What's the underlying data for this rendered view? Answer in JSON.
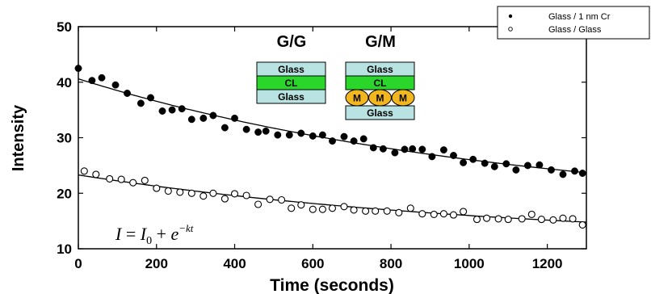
{
  "chart_data": {
    "type": "scatter",
    "xlabel": "Time (seconds)",
    "ylabel": "Intensity",
    "xlim": [
      0,
      1300
    ],
    "ylim": [
      10,
      50
    ],
    "xticks": [
      0,
      200,
      400,
      600,
      800,
      1000,
      1200
    ],
    "yticks": [
      10,
      20,
      30,
      40,
      50
    ],
    "grid": false,
    "legend_position": "top-right",
    "annotation": {
      "I": "I",
      "equals": " = ",
      "I0_base": "I",
      "I0_sub": "0",
      "plus": " + ",
      "e": "e",
      "exp": "−kt"
    },
    "series": [
      {
        "name": "Glass / 1 nm Cr",
        "marker": "filled-circle",
        "color": "#000000",
        "x": [
          0,
          35,
          60,
          95,
          125,
          160,
          185,
          215,
          240,
          265,
          290,
          320,
          345,
          375,
          400,
          430,
          460,
          480,
          510,
          540,
          570,
          600,
          625,
          650,
          680,
          705,
          730,
          755,
          780,
          810,
          835,
          855,
          880,
          905,
          935,
          960,
          985,
          1010,
          1040,
          1065,
          1095,
          1120,
          1150,
          1180,
          1210,
          1240,
          1270,
          1290
        ],
        "y": [
          42.5,
          40.3,
          40.8,
          39.5,
          38.0,
          36.2,
          37.2,
          34.8,
          35.0,
          35.2,
          33.3,
          33.5,
          34.0,
          31.8,
          33.5,
          31.5,
          31.0,
          31.2,
          30.5,
          30.5,
          30.8,
          30.3,
          30.5,
          29.4,
          30.2,
          29.4,
          29.8,
          28.2,
          28.0,
          27.3,
          27.9,
          28.0,
          27.9,
          26.6,
          27.8,
          26.8,
          25.5,
          26.1,
          25.4,
          24.8,
          25.3,
          24.2,
          25.0,
          25.1,
          24.2,
          23.4,
          24.0,
          23.6
        ],
        "fit": {
          "model": "exponential decay",
          "y0": 40.6,
          "y_end": 23.7
        }
      },
      {
        "name": "Glass / Glass",
        "marker": "open-circle",
        "color": "#000000",
        "x": [
          15,
          45,
          80,
          110,
          140,
          170,
          200,
          230,
          260,
          290,
          320,
          345,
          375,
          400,
          430,
          460,
          490,
          520,
          545,
          570,
          600,
          625,
          650,
          680,
          705,
          735,
          760,
          790,
          820,
          850,
          880,
          910,
          935,
          960,
          985,
          1020,
          1045,
          1075,
          1100,
          1135,
          1160,
          1185,
          1215,
          1240,
          1265,
          1290
        ],
        "y": [
          24.0,
          23.4,
          22.6,
          22.5,
          21.9,
          22.3,
          20.9,
          20.4,
          20.2,
          20.0,
          19.5,
          20.0,
          19.0,
          19.9,
          19.6,
          18.0,
          18.9,
          18.8,
          17.3,
          17.9,
          17.1,
          17.1,
          17.3,
          17.6,
          17.0,
          16.8,
          16.8,
          16.8,
          16.5,
          17.3,
          16.3,
          16.2,
          16.3,
          16.1,
          16.7,
          15.3,
          15.5,
          15.4,
          15.3,
          15.4,
          16.2,
          15.3,
          15.2,
          15.5,
          15.4,
          14.3
        ],
        "fit": {
          "model": "exponential decay",
          "y0": 23.3,
          "y_end": 14.8
        }
      }
    ],
    "inset": {
      "gg": {
        "title": "G/G",
        "layers": [
          "Glass",
          "CL",
          "Glass"
        ]
      },
      "gm": {
        "title": "G/M",
        "layers": [
          "Glass",
          "CL",
          "Glass"
        ],
        "particle_label": "M",
        "particle_count": 3
      },
      "colors": {
        "glass": "#b9e3e2",
        "cl": "#2bd62b",
        "particle": "#f2b71f"
      }
    }
  }
}
